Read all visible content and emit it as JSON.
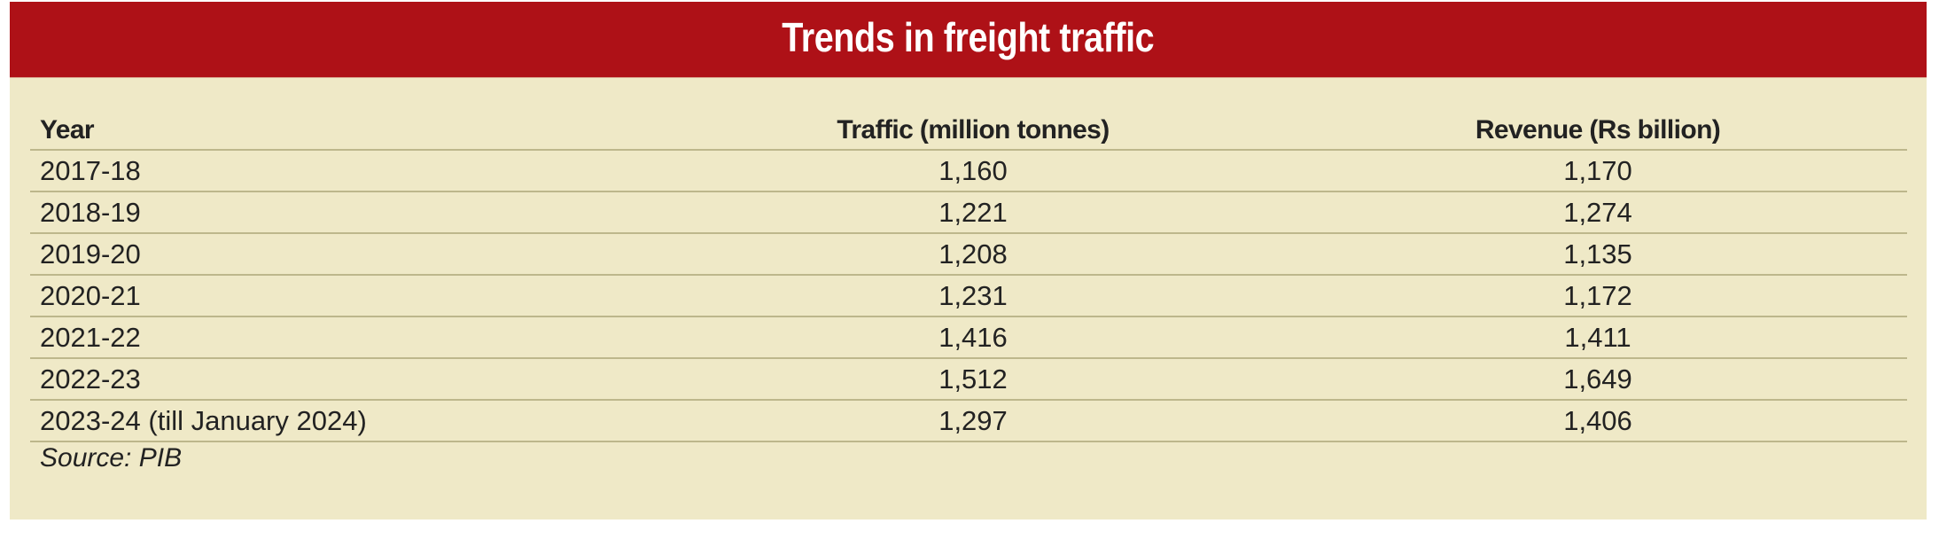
{
  "title": "Trends in freight traffic",
  "colors": {
    "title_bar": "#ae1117",
    "panel_background": "#efe9c7",
    "rule": "#bdb78c",
    "text": "#222222"
  },
  "table": {
    "headers": {
      "year": "Year",
      "traffic": "Traffic (million tonnes)",
      "revenue": "Revenue (Rs billion)"
    },
    "rows": [
      {
        "year": "2017-18",
        "traffic": "1,160",
        "revenue": "1,170"
      },
      {
        "year": "2018-19",
        "traffic": "1,221",
        "revenue": "1,274"
      },
      {
        "year": "2019-20",
        "traffic": "1,208",
        "revenue": "1,135"
      },
      {
        "year": "2020-21",
        "traffic": "1,231",
        "revenue": "1,172"
      },
      {
        "year": "2021-22",
        "traffic": "1,416",
        "revenue": "1,411"
      },
      {
        "year": "2022-23",
        "traffic": "1,512",
        "revenue": "1,649"
      },
      {
        "year": "2023-24 (till January 2024)",
        "traffic": "1,297",
        "revenue": "1,406"
      }
    ]
  },
  "source": "Source: PIB"
}
